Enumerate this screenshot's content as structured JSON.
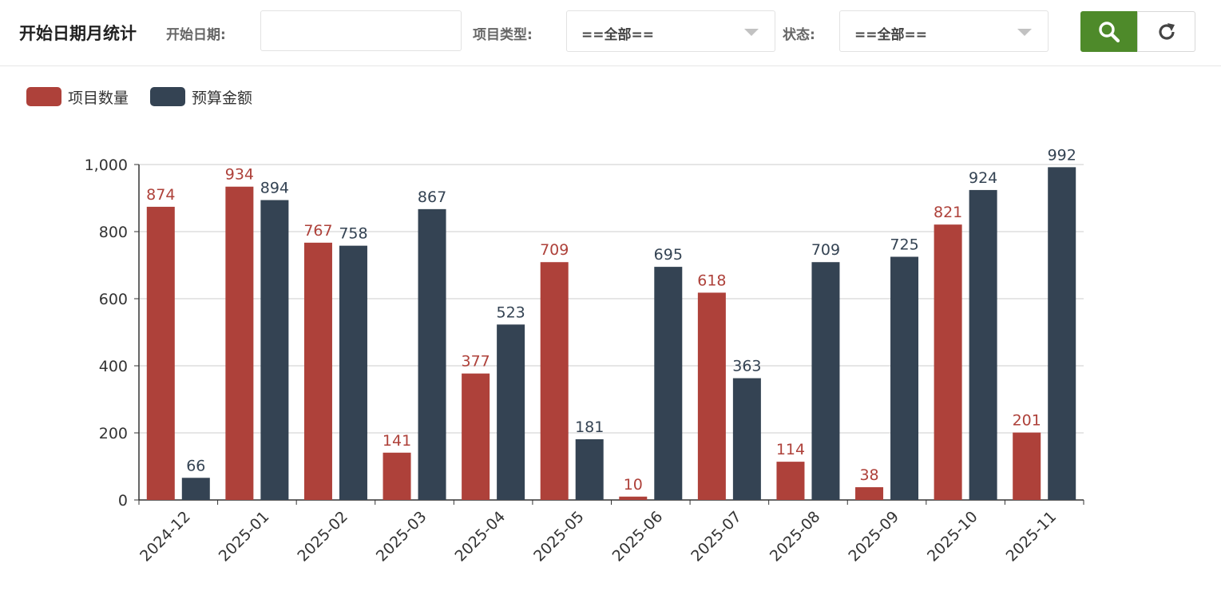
{
  "toolbar": {
    "title": "开始日期月统计",
    "start_date_label": "开始日期:",
    "start_date_value": "",
    "project_type_label": "项目类型:",
    "project_type_value": "==全部==",
    "status_label": "状态:",
    "status_value": "==全部==",
    "search_icon": "search-icon",
    "refresh_icon": "refresh-icon",
    "accent_color": "#4e8a2a"
  },
  "chart_data": {
    "type": "bar",
    "categories": [
      "2024-12",
      "2025-01",
      "2025-02",
      "2025-03",
      "2025-04",
      "2025-05",
      "2025-06",
      "2025-07",
      "2025-08",
      "2025-09",
      "2025-10",
      "2025-11"
    ],
    "series": [
      {
        "name": "项目数量",
        "color": "#ae413a",
        "values": [
          874,
          934,
          767,
          141,
          377,
          709,
          10,
          618,
          114,
          38,
          821,
          201
        ]
      },
      {
        "name": "预算金额",
        "color": "#344353",
        "values": [
          66,
          894,
          758,
          867,
          523,
          181,
          695,
          363,
          709,
          725,
          924,
          992
        ]
      }
    ],
    "ylim": [
      0,
      1000
    ],
    "yticks": [
      0,
      200,
      400,
      600,
      800,
      1000
    ],
    "ytick_labels": [
      "0",
      "200",
      "400",
      "600",
      "800",
      "1,000"
    ],
    "legend": "top-left",
    "grid": true
  }
}
